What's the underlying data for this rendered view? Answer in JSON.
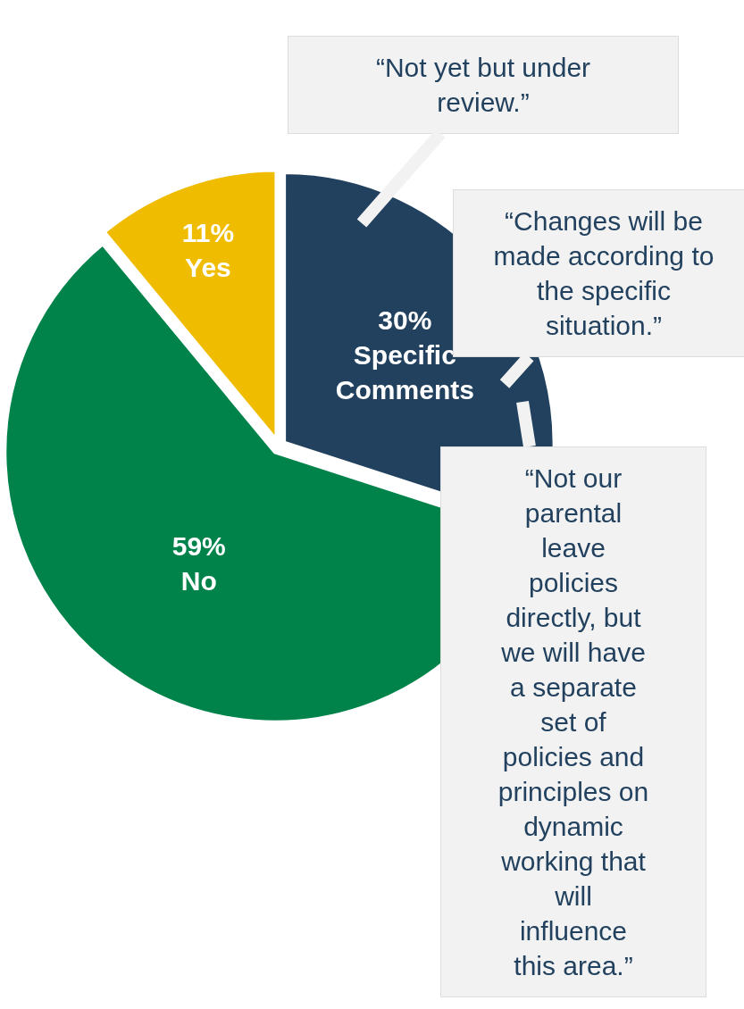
{
  "chart_data": {
    "type": "pie",
    "categories": [
      "Specific Comments",
      "No",
      "Yes"
    ],
    "values": [
      30,
      59,
      11
    ],
    "value_labels": [
      "30%",
      "59%",
      "11%"
    ],
    "colors": [
      "#22415e",
      "#00834a",
      "#f0bc00"
    ],
    "legend": false,
    "annotations": [
      "“Not yet but under review.”",
      "“Changes will be made according to the specific situation.”",
      "“Not our parental leave policies directly, but we will have a separate set of policies and principles on dynamic working that will influence this area.”"
    ]
  }
}
